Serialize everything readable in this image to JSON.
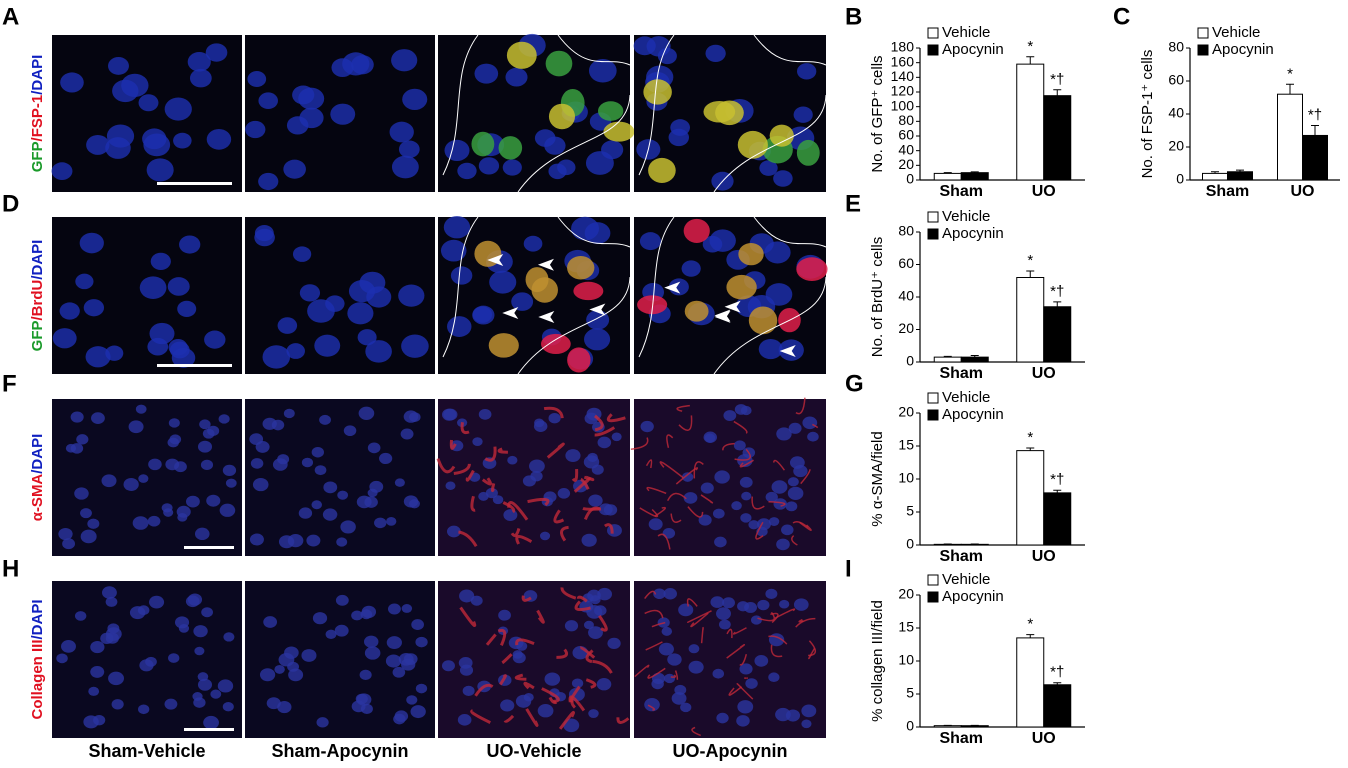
{
  "figure": {
    "panel_letters": [
      "A",
      "D",
      "F",
      "H"
    ],
    "row_labels": [
      [
        "GFP",
        "/FSP-1",
        "/DAPI"
      ],
      [
        "GFP",
        "/BrdU",
        "/DAPI"
      ],
      [
        "α-SMA",
        "/DAPI"
      ],
      [
        "Collagen III",
        "/DAPI"
      ]
    ],
    "column_labels": [
      "Sham-Vehicle",
      "Sham-Apocynin",
      "UO-Vehicle",
      "UO-Apocynin"
    ]
  },
  "chart_data": [
    {
      "type": "bar",
      "title": "B",
      "ylabel": "No. of GFP⁺ cells",
      "categories": [
        "Sham",
        "UO"
      ],
      "series": [
        {
          "name": "Vehicle",
          "color": "#ffffff",
          "values": [
            9,
            158
          ],
          "errors": [
            1,
            10
          ],
          "annotations": [
            null,
            "*"
          ]
        },
        {
          "name": "Apocynin",
          "color": "#000000",
          "values": [
            10,
            115
          ],
          "errors": [
            1,
            8
          ],
          "annotations": [
            null,
            "*†"
          ]
        }
      ],
      "ylim": [
        0,
        180
      ],
      "yticks": [
        0,
        20,
        40,
        60,
        80,
        100,
        120,
        140,
        160,
        180
      ]
    },
    {
      "type": "bar",
      "title": "C",
      "ylabel": "No. of FSP-1⁺ cells",
      "categories": [
        "Sham",
        "UO"
      ],
      "series": [
        {
          "name": "Vehicle",
          "color": "#ffffff",
          "values": [
            4,
            52
          ],
          "errors": [
            1,
            6
          ],
          "annotations": [
            null,
            "*"
          ]
        },
        {
          "name": "Apocynin",
          "color": "#000000",
          "values": [
            5,
            27
          ],
          "errors": [
            1,
            6
          ],
          "annotations": [
            null,
            "*†"
          ]
        }
      ],
      "ylim": [
        0,
        80
      ],
      "yticks": [
        0,
        20,
        40,
        60,
        80
      ]
    },
    {
      "type": "bar",
      "title": "E",
      "ylabel": "No. of BrdU⁺ cells",
      "categories": [
        "Sham",
        "UO"
      ],
      "series": [
        {
          "name": "Vehicle",
          "color": "#ffffff",
          "values": [
            3,
            52
          ],
          "errors": [
            0.5,
            4
          ],
          "annotations": [
            null,
            "*"
          ]
        },
        {
          "name": "Apocynin",
          "color": "#000000",
          "values": [
            3,
            34
          ],
          "errors": [
            1,
            3
          ],
          "annotations": [
            null,
            "*†"
          ]
        }
      ],
      "ylim": [
        0,
        80
      ],
      "yticks": [
        0,
        20,
        40,
        60,
        80
      ]
    },
    {
      "type": "bar",
      "title": "G",
      "ylabel": "% α-SMA/field",
      "categories": [
        "Sham",
        "UO"
      ],
      "series": [
        {
          "name": "Vehicle",
          "color": "#ffffff",
          "values": [
            0.1,
            14.3
          ],
          "errors": [
            0.05,
            0.4
          ],
          "annotations": [
            null,
            "*"
          ]
        },
        {
          "name": "Apocynin",
          "color": "#000000",
          "values": [
            0.1,
            7.9
          ],
          "errors": [
            0.05,
            0.4
          ],
          "annotations": [
            null,
            "*†"
          ]
        }
      ],
      "ylim": [
        0,
        20
      ],
      "yticks": [
        0,
        5,
        10,
        15,
        20
      ]
    },
    {
      "type": "bar",
      "title": "I",
      "ylabel": "% collagen III/field",
      "categories": [
        "Sham",
        "UO"
      ],
      "series": [
        {
          "name": "Vehicle",
          "color": "#ffffff",
          "values": [
            0.2,
            13.5
          ],
          "errors": [
            0.05,
            0.5
          ],
          "annotations": [
            null,
            "*"
          ]
        },
        {
          "name": "Apocynin",
          "color": "#000000",
          "values": [
            0.2,
            6.4
          ],
          "errors": [
            0.05,
            0.3
          ],
          "annotations": [
            null,
            "*†"
          ]
        }
      ],
      "ylim": [
        0,
        20
      ],
      "yticks": [
        0,
        5,
        10,
        15,
        20
      ]
    }
  ]
}
